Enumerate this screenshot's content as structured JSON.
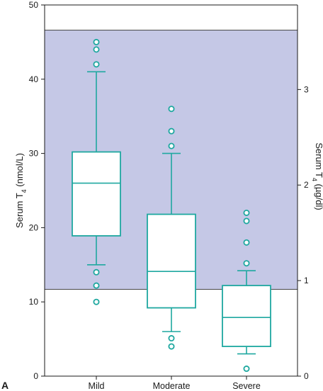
{
  "panel_label": "A",
  "colors": {
    "reference_band": "#c5c8e6",
    "box": "#1fa8a0",
    "axis": "#1a1a1a"
  },
  "chart_data": {
    "type": "box",
    "title": "",
    "xlabel": "",
    "ylabel": {
      "prefix": "Serum T",
      "sub": "4",
      "suffix": " (nmol/L)"
    },
    "y2label": {
      "prefix": "Serum T",
      "sub": "4",
      "suffix": " (µg/dl)"
    },
    "ylim": [
      0,
      50
    ],
    "y_ticks": [
      "0",
      "10",
      "20",
      "30",
      "40",
      "50"
    ],
    "y2_ticks": [
      "0",
      "1",
      "2",
      "3"
    ],
    "y2_tick_values_nmol": [
      0,
      12.87,
      25.74,
      38.61
    ],
    "reference_range": [
      11.7,
      46.6
    ],
    "categories": [
      "Mild",
      "Moderate",
      "Severe"
    ],
    "boxes": [
      {
        "label": "Mild",
        "whisker_low": 15,
        "q1": 18.9,
        "median": 26,
        "q3": 30.2,
        "whisker_high": 41,
        "outliers": [
          45,
          44,
          42,
          14,
          12.2,
          10
        ]
      },
      {
        "label": "Moderate",
        "whisker_low": 6,
        "q1": 9.2,
        "median": 14.1,
        "q3": 21.8,
        "whisker_high": 30,
        "outliers": [
          36,
          33,
          31,
          5.1,
          4
        ]
      },
      {
        "label": "Severe",
        "whisker_low": 3,
        "q1": 4,
        "median": 7.9,
        "q3": 12.2,
        "whisker_high": 14.2,
        "outliers": [
          22,
          20.9,
          18,
          15.2,
          1
        ]
      }
    ]
  }
}
